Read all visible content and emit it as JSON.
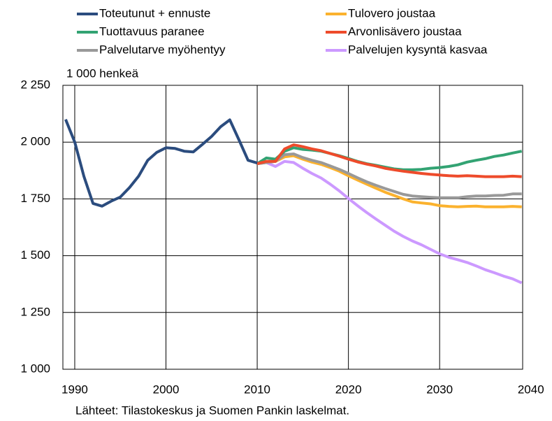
{
  "chart_data": {
    "type": "line",
    "y_label": "1 000 henkeä",
    "source": "Lähteet: Tilastokeskus ja Suomen Pankin laskelmat.",
    "x": [
      1989,
      1990,
      1991,
      1992,
      1993,
      1994,
      1995,
      1996,
      1997,
      1998,
      1999,
      2000,
      2001,
      2002,
      2003,
      2004,
      2005,
      2006,
      2007,
      2008,
      2009,
      2010,
      2011,
      2012,
      2013,
      2014,
      2015,
      2016,
      2017,
      2018,
      2019,
      2020,
      2021,
      2022,
      2023,
      2024,
      2025,
      2026,
      2027,
      2028,
      2029,
      2030,
      2031,
      2032,
      2033,
      2034,
      2035,
      2036,
      2037,
      2038,
      2039
    ],
    "series": [
      {
        "name": "Palvelujen kysyntä kasvaa",
        "color": "#cc99ff",
        "values": [
          null,
          null,
          null,
          null,
          null,
          null,
          null,
          null,
          null,
          null,
          null,
          null,
          null,
          null,
          null,
          null,
          null,
          null,
          null,
          null,
          null,
          1905,
          1910,
          1893,
          1915,
          1910,
          1885,
          1862,
          1842,
          1815,
          1785,
          1752,
          1720,
          1690,
          1662,
          1635,
          1608,
          1585,
          1565,
          1548,
          1528,
          1508,
          1493,
          1482,
          1470,
          1455,
          1438,
          1425,
          1410,
          1398,
          1380
        ]
      },
      {
        "name": "Tulovero joustaa",
        "color": "#fbb22e",
        "values": [
          null,
          null,
          null,
          null,
          null,
          null,
          null,
          null,
          null,
          null,
          null,
          null,
          null,
          null,
          null,
          null,
          null,
          null,
          null,
          null,
          null,
          1905,
          1910,
          1915,
          1935,
          1940,
          1925,
          1912,
          1902,
          1888,
          1872,
          1852,
          1833,
          1815,
          1797,
          1780,
          1765,
          1750,
          1737,
          1732,
          1728,
          1720,
          1717,
          1715,
          1717,
          1718,
          1715,
          1715,
          1715,
          1717,
          1715
        ]
      },
      {
        "name": "Palvelutarve myöhentyy",
        "color": "#999999",
        "values": [
          null,
          null,
          null,
          null,
          null,
          null,
          null,
          null,
          null,
          null,
          null,
          null,
          null,
          null,
          null,
          null,
          null,
          null,
          null,
          null,
          null,
          1905,
          1910,
          1915,
          1945,
          1948,
          1932,
          1920,
          1910,
          1895,
          1880,
          1862,
          1843,
          1825,
          1810,
          1796,
          1783,
          1770,
          1763,
          1760,
          1757,
          1755,
          1755,
          1755,
          1760,
          1763,
          1763,
          1765,
          1766,
          1772,
          1772
        ]
      },
      {
        "name": "Tuottavuus paranee",
        "color": "#33a373",
        "values": [
          null,
          null,
          null,
          null,
          null,
          null,
          null,
          null,
          null,
          null,
          null,
          null,
          null,
          null,
          null,
          null,
          null,
          null,
          null,
          null,
          null,
          1905,
          1930,
          1925,
          1960,
          1975,
          1968,
          1965,
          1960,
          1950,
          1940,
          1928,
          1915,
          1905,
          1898,
          1890,
          1882,
          1878,
          1878,
          1880,
          1885,
          1888,
          1893,
          1900,
          1912,
          1920,
          1927,
          1937,
          1943,
          1952,
          1960
        ]
      },
      {
        "name": "Arvonlisävero joustaa",
        "color": "#ee4b2b",
        "values": [
          null,
          null,
          null,
          null,
          null,
          null,
          null,
          null,
          null,
          null,
          null,
          null,
          null,
          null,
          null,
          null,
          null,
          null,
          null,
          null,
          null,
          1905,
          1915,
          1915,
          1970,
          1988,
          1980,
          1970,
          1962,
          1950,
          1938,
          1925,
          1913,
          1903,
          1895,
          1885,
          1878,
          1872,
          1867,
          1862,
          1858,
          1855,
          1852,
          1850,
          1852,
          1850,
          1848,
          1848,
          1848,
          1850,
          1848
        ]
      },
      {
        "name": "Toteutunut + ennuste",
        "color": "#2b4c7e",
        "values": [
          2100,
          2000,
          1850,
          1730,
          1718,
          1740,
          1758,
          1800,
          1850,
          1920,
          1955,
          1975,
          1972,
          1960,
          1957,
          1990,
          2025,
          2068,
          2098,
          2010,
          1920,
          1908,
          null,
          null,
          null,
          null,
          null,
          null,
          null,
          null,
          null,
          null,
          null,
          null,
          null,
          null,
          null,
          null,
          null,
          null,
          null,
          null,
          null,
          null,
          null,
          null,
          null,
          null,
          null,
          null,
          null
        ]
      }
    ],
    "legend_order": [
      5,
      1,
      3,
      4,
      2,
      0
    ],
    "xlim": [
      1988.7,
      2039.1
    ],
    "xticks": [
      1990,
      2000,
      2010,
      2020,
      2030,
      2040
    ],
    "ylim": [
      1000,
      2250
    ],
    "yticks": [
      {
        "value": 1000,
        "label": "1 000"
      },
      {
        "value": 1250,
        "label": "1 250"
      },
      {
        "value": 1500,
        "label": "1 500"
      },
      {
        "value": 1750,
        "label": "1 750"
      },
      {
        "value": 2000,
        "label": "2 000"
      },
      {
        "value": 2250,
        "label": "2 250"
      }
    ],
    "grid": true
  }
}
